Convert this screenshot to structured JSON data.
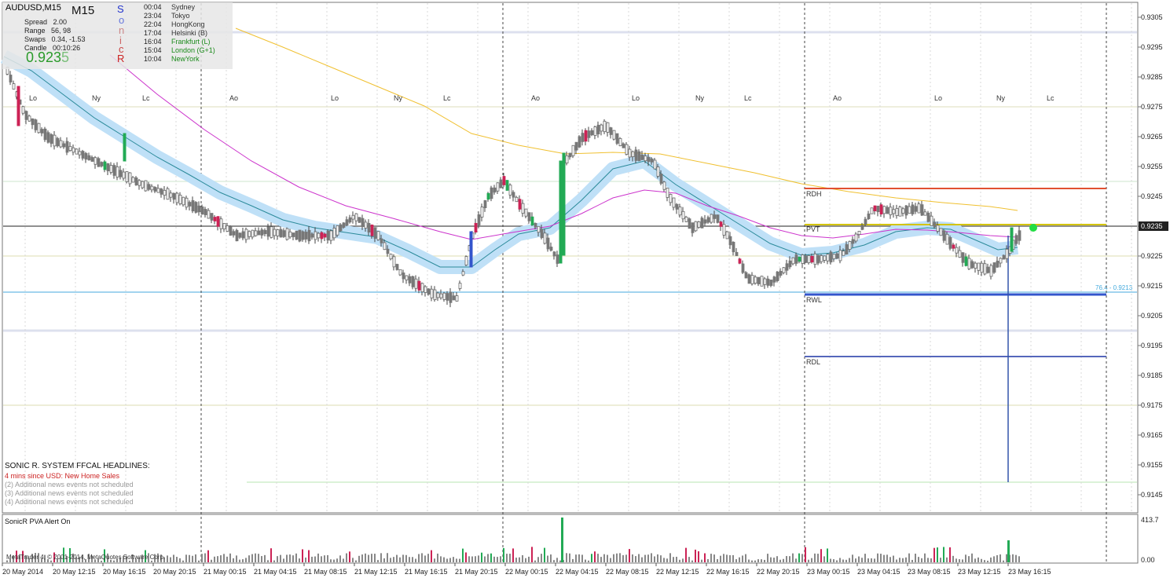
{
  "window": {
    "symbol_title": "AUDUSD,M15",
    "timeframe": "M15"
  },
  "info_panel": {
    "stats": [
      {
        "label": "Spread",
        "value": "2.00"
      },
      {
        "label": "Range",
        "value": "56, 98"
      },
      {
        "label": "Swaps",
        "value": "0.34, -1.53"
      },
      {
        "label": "Candle",
        "value": "00:10:26"
      }
    ],
    "price_main": "0.923",
    "price_last_digit": "5",
    "sonic_letters": [
      "S",
      "o",
      "n",
      "i",
      "c",
      "R"
    ],
    "sessions": [
      {
        "time": "00:04",
        "name": "Sydney",
        "color": "#333333"
      },
      {
        "time": "23:04",
        "name": "Tokyo",
        "color": "#333333"
      },
      {
        "time": "22:04",
        "name": "HongKong",
        "color": "#333333"
      },
      {
        "time": "17:04",
        "name": "Helsinki  (B)",
        "color": "#333333"
      },
      {
        "time": "16:04",
        "name": "Frankfurt  (L)",
        "color": "#1a8a1a"
      },
      {
        "time": "15:04",
        "name": "London  (G+1)",
        "color": "#1a8a1a"
      },
      {
        "time": "10:04",
        "name": "NewYork",
        "color": "#1a8a1a"
      }
    ]
  },
  "price_axis": {
    "ticks": [
      "0.9305",
      "0.9295",
      "0.9285",
      "0.9275",
      "0.9265",
      "0.9255",
      "0.9245",
      "0.9235",
      "0.9225",
      "0.9215",
      "0.9205",
      "0.9195",
      "0.9185",
      "0.9175",
      "0.9165",
      "0.9155",
      "0.9145"
    ],
    "current_price": "0.9235"
  },
  "time_axis": {
    "labels": [
      "20 May 2014",
      "20 May 12:15",
      "20 May 16:15",
      "20 May 20:15",
      "21 May 00:15",
      "21 May 04:15",
      "21 May 08:15",
      "21 May 12:15",
      "21 May 16:15",
      "21 May 20:15",
      "22 May 00:15",
      "22 May 04:15",
      "22 May 08:15",
      "22 May 12:15",
      "22 May 16:15",
      "22 May 20:15",
      "23 May 00:15",
      "23 May 04:15",
      "23 May 08:15",
      "23 May 12:15",
      "23 May 16:15"
    ]
  },
  "session_markers": [
    "Lo",
    "Ny",
    "Lc",
    "Ao",
    "Lo",
    "Ny",
    "Lc",
    "Ao",
    "Lo",
    "Ny",
    "Lc",
    "Ao",
    "Lo",
    "Ny",
    "Lc"
  ],
  "pivot_levels": {
    "rdh": "RDH",
    "pvt": "PVT",
    "rwl": "RWL",
    "rdl": "RDL",
    "fib_label": "76.4 - 0.9213"
  },
  "headlines": {
    "title": "SONIC R. SYSTEM  FFCAL HEADLINES:",
    "lines": [
      {
        "text": "4 mins since USD: New Home Sales",
        "color": "#cc2222"
      },
      {
        "text": "(2)  Additional news events not scheduled",
        "color": "#999999"
      },
      {
        "text": "(3)  Additional news events not scheduled",
        "color": "#999999"
      },
      {
        "text": "(4)  Additional news events not scheduled",
        "color": "#999999"
      }
    ]
  },
  "pva_panel": {
    "title": "SonicR PVA    Alert On",
    "axis_top": "413.7",
    "axis_bottom": "0.00",
    "copyright": "MetaTrader 4, © 2001-2014, MetaQuotes Software Corp."
  },
  "colors": {
    "bear_candle": "#cc2255",
    "bull_climax": "#22aa55",
    "bear_climax": "#cc2255",
    "neutral_candle": "#777777",
    "ema34_band": "#bfe0f7",
    "ema89": "#cc33cc",
    "ema200": "#f0c030",
    "rdh_line": "#e05030",
    "pvt_line": "#d4c400",
    "rwl_line": "#3355cc",
    "rdl_line": "#5566bb",
    "fib_line": "#44aadd"
  }
}
